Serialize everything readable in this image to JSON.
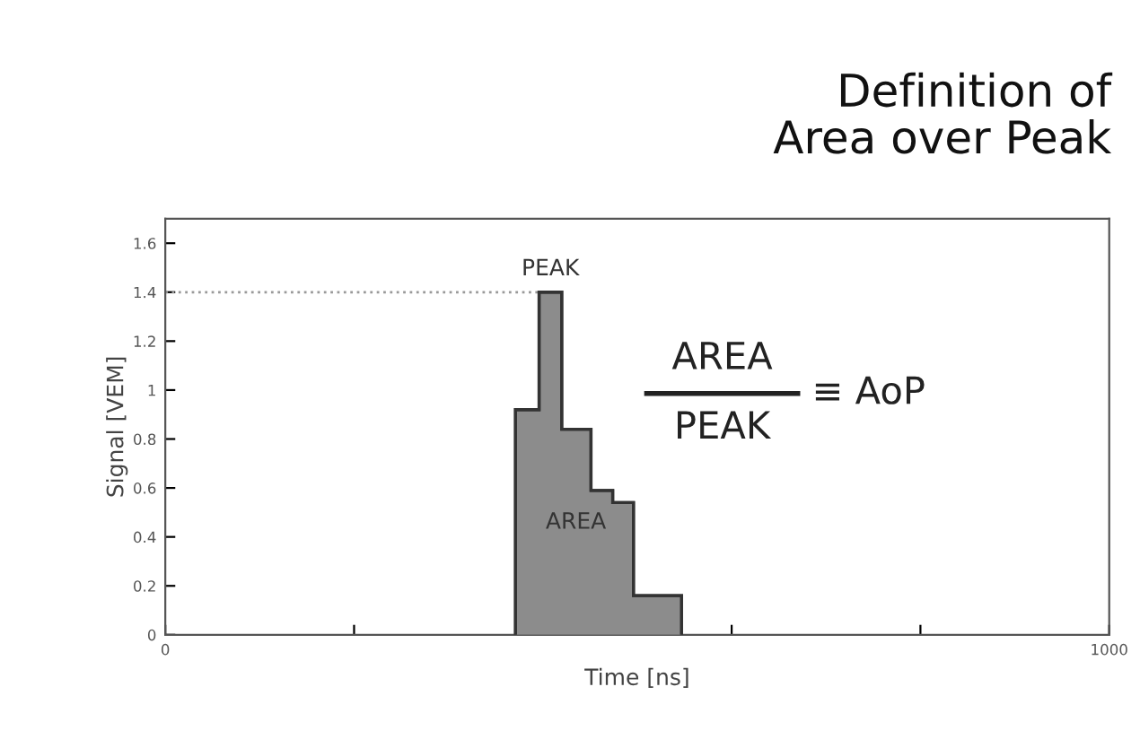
{
  "chart_data": {
    "type": "histogram",
    "title": "Definition of\nArea over Peak",
    "xlabel": "Time [ns]",
    "ylabel": "Signal [VEM]",
    "bins": [
      371,
      396,
      420,
      451,
      474,
      496,
      547
    ],
    "values": [
      0.92,
      1.4,
      0.84,
      0.59,
      0.54,
      0.16
    ],
    "color": "#8c8c8c",
    "xlim": [
      0,
      1000
    ],
    "ylim": [
      0,
      1.7
    ],
    "xticks": [
      0,
      {
        "value": 200,
        "label": null
      },
      {
        "value": 400,
        "label": null
      },
      {
        "value": 600,
        "label": null
      },
      {
        "value": 800,
        "label": null
      },
      1000
    ],
    "yticks": [
      0,
      0.2,
      0.4,
      0.6,
      0.8,
      1,
      1.2,
      1.4,
      1.6
    ],
    "ref_lines": [
      {
        "axis": "y",
        "value": 1.4,
        "line_style": "dotted",
        "color": "#999999"
      }
    ],
    "annotations": [
      {
        "text": "PEAK",
        "x": 408,
        "y": 1.4
      },
      "AREA",
      "AREA",
      "PEAK",
      "≡ AoP"
    ],
    "grid": false
  }
}
